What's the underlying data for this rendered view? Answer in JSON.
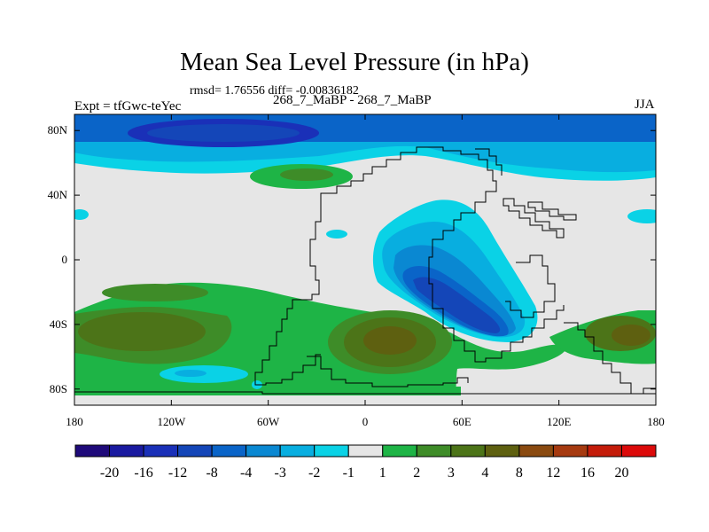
{
  "chart_data": {
    "type": "heatmap",
    "title": "Mean Sea Level Pressure (in hPa)",
    "stats_text": "rmsd= 1.76556 diff= -0.00836182",
    "subtitle": "268_7_MaBP - 268_7_MaBP",
    "left_label": "Expt = tfGwc-teYec",
    "right_label": "JJA",
    "x_range": [
      -180,
      180
    ],
    "y_range": [
      -90,
      90
    ],
    "x_ticks": [
      {
        "value": -180,
        "label": "180"
      },
      {
        "value": -120,
        "label": "120W"
      },
      {
        "value": -60,
        "label": "60W"
      },
      {
        "value": 0,
        "label": "0"
      },
      {
        "value": 60,
        "label": "60E"
      },
      {
        "value": 120,
        "label": "120E"
      },
      {
        "value": 180,
        "label": "180"
      }
    ],
    "y_ticks": [
      {
        "value": 80,
        "label": "80N"
      },
      {
        "value": 40,
        "label": "40N"
      },
      {
        "value": 0,
        "label": "0"
      },
      {
        "value": -40,
        "label": "40S"
      },
      {
        "value": -80,
        "label": "80S"
      }
    ],
    "colorbar": {
      "colors": [
        "#1f0a7a",
        "#1a1aa0",
        "#1a30b8",
        "#1446b8",
        "#0a64c8",
        "#0a88d2",
        "#08aee0",
        "#0ad2e6",
        "#e6e6e6",
        "#1eb446",
        "#3e8c28",
        "#4c7418",
        "#5e6010",
        "#8a4a10",
        "#a63a10",
        "#c41c0a",
        "#dc0a0a"
      ],
      "labels": [
        "-20",
        "-16",
        "-12",
        "-8",
        "-4",
        "-3",
        "-2",
        "-1",
        "1",
        "2",
        "3",
        "4",
        "8",
        "12",
        "16",
        "20"
      ]
    },
    "background_color": "#e6e6e6"
  }
}
